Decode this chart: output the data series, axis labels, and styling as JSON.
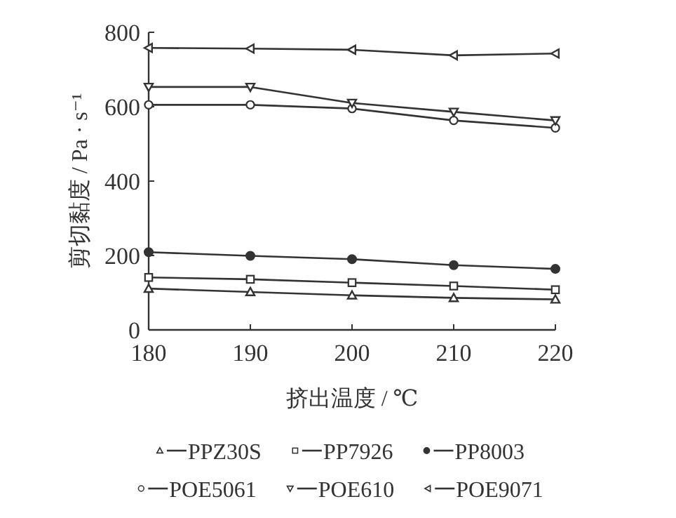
{
  "chart_data": {
    "type": "line",
    "xlabel": "挤出温度 / ℃",
    "ylabel": "剪切黏度 / Pa · s⁻¹",
    "x": [
      180,
      190,
      200,
      210,
      220
    ],
    "xlim": [
      180,
      220
    ],
    "xticks": [
      180,
      190,
      200,
      210,
      220
    ],
    "ylim": [
      0,
      800
    ],
    "yticks": [
      0,
      200,
      400,
      600,
      800
    ],
    "grid": false,
    "legend": "bottom",
    "series": [
      {
        "name": "PPZ30S",
        "color": "#333333",
        "marker": "triangle",
        "values": [
          111,
          102,
          93,
          86,
          82
        ]
      },
      {
        "name": "PP7926",
        "color": "#333333",
        "marker": "square",
        "values": [
          141,
          136,
          127,
          118,
          108
        ]
      },
      {
        "name": "PP8003",
        "color": "#333333",
        "marker": "circle",
        "values": [
          209,
          199,
          190,
          174,
          164
        ]
      },
      {
        "name": "POE5061",
        "color": "#333333",
        "marker": "circle-open",
        "values": [
          605,
          605,
          595,
          563,
          543
        ]
      },
      {
        "name": "POE610",
        "color": "#333333",
        "marker": "triangle-down",
        "values": [
          653,
          653,
          610,
          586,
          563
        ]
      },
      {
        "name": "POE9071",
        "color": "#333333",
        "marker": "triangle-left",
        "values": [
          758,
          756,
          753,
          738,
          743
        ]
      }
    ]
  }
}
